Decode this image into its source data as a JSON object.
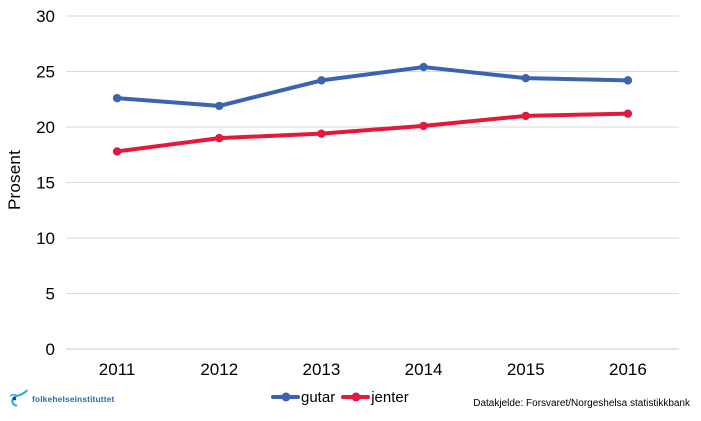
{
  "chart_data": {
    "type": "line",
    "title": "",
    "ylabel": "Prosent",
    "xlabel": "",
    "categories": [
      "2011",
      "2012",
      "2013",
      "2014",
      "2015",
      "2016"
    ],
    "series": [
      {
        "name": "gutar",
        "color": "#3D63B0",
        "values": [
          22.6,
          21.9,
          24.2,
          25.4,
          24.4,
          24.2
        ]
      },
      {
        "name": "jenter",
        "color": "#E4173C",
        "values": [
          17.8,
          19.0,
          19.4,
          20.1,
          21.0,
          21.2
        ]
      }
    ],
    "ylim": [
      0,
      30
    ],
    "yticks": [
      0,
      5,
      10,
      15,
      20,
      25,
      30
    ],
    "grid": "horizontal-only",
    "legend_position": "bottom-center"
  },
  "footer": {
    "source_text": "Datakjelde: Forsvaret/Norgeshelsa statistikkbank",
    "logo_text": "folkehelseinstituttet"
  },
  "colors": {
    "series_gutar": "#3D63B0",
    "series_jenter": "#E4173C",
    "gridline": "#D9D9D9",
    "axis_line": "#C9C9C9",
    "text": "#000000",
    "logo_teal": "#33ADD4",
    "logo_dark_blue": "#1F3C8C",
    "logo_text_blue": "#2272B9"
  }
}
